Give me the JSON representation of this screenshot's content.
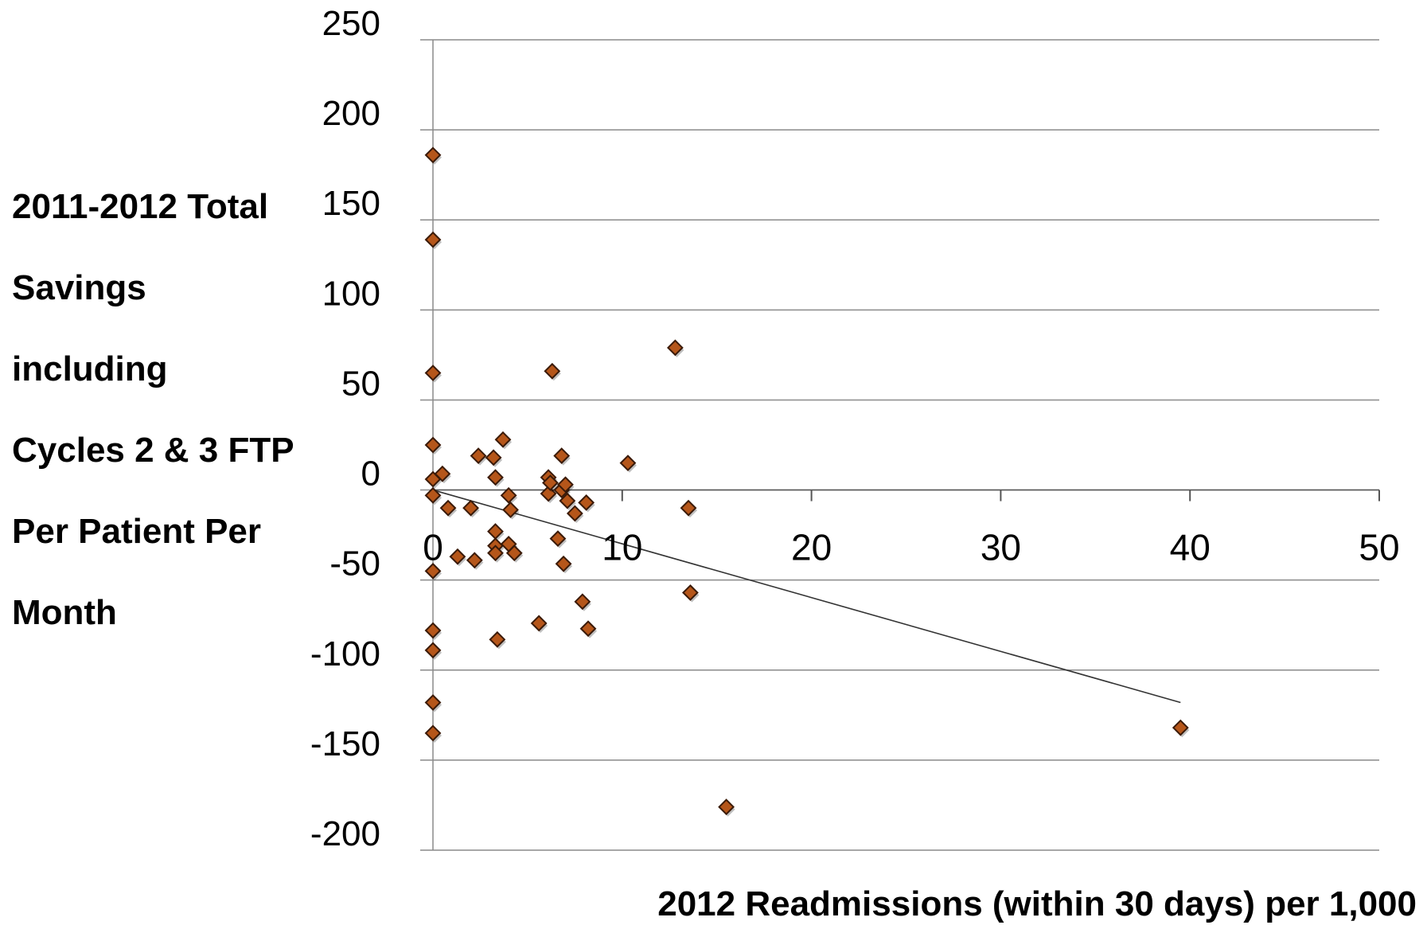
{
  "chart_data": {
    "type": "scatter",
    "title": "",
    "ylabel_lines": [
      "2011-2012 Total",
      "Savings",
      "including",
      "Cycles 2 & 3 FTP",
      "Per Patient Per",
      "Month"
    ],
    "xlabel": "2012 Readmissions (within 30 days) per 1,000",
    "xlim": [
      0,
      50
    ],
    "ylim": [
      -200,
      250
    ],
    "xticks": [
      0,
      10,
      20,
      30,
      40,
      50
    ],
    "yticks": [
      250,
      200,
      150,
      100,
      50,
      0,
      -50,
      -100,
      -150,
      -200
    ],
    "grid": "horizontal",
    "legend": "none",
    "marker_color": "#b5561a",
    "marker_edge_color": "#3a1a08",
    "trendline_color": "#333333",
    "trendline": {
      "x": [
        0,
        39.5
      ],
      "y": [
        0,
        -118
      ]
    },
    "points": [
      {
        "x": 0,
        "y": 186
      },
      {
        "x": 0,
        "y": 139
      },
      {
        "x": 0,
        "y": 65
      },
      {
        "x": 0,
        "y": 25
      },
      {
        "x": 0,
        "y": 6
      },
      {
        "x": 0,
        "y": -3
      },
      {
        "x": 0,
        "y": -45
      },
      {
        "x": 0,
        "y": -78
      },
      {
        "x": 0,
        "y": -89
      },
      {
        "x": 0,
        "y": -118
      },
      {
        "x": 0,
        "y": -135
      },
      {
        "x": 0.5,
        "y": 9
      },
      {
        "x": 0.8,
        "y": -10
      },
      {
        "x": 1.3,
        "y": -37
      },
      {
        "x": 2.0,
        "y": -10
      },
      {
        "x": 2.2,
        "y": -39
      },
      {
        "x": 2.4,
        "y": 19
      },
      {
        "x": 3.2,
        "y": 18
      },
      {
        "x": 3.3,
        "y": 7
      },
      {
        "x": 3.3,
        "y": -23
      },
      {
        "x": 3.3,
        "y": -31
      },
      {
        "x": 3.3,
        "y": -35
      },
      {
        "x": 3.4,
        "y": -83
      },
      {
        "x": 3.7,
        "y": 28
      },
      {
        "x": 4.0,
        "y": -3
      },
      {
        "x": 4.0,
        "y": -30
      },
      {
        "x": 4.1,
        "y": -11
      },
      {
        "x": 4.3,
        "y": -35
      },
      {
        "x": 5.6,
        "y": -74
      },
      {
        "x": 6.1,
        "y": 7
      },
      {
        "x": 6.1,
        "y": -2
      },
      {
        "x": 6.2,
        "y": 4
      },
      {
        "x": 6.3,
        "y": 66
      },
      {
        "x": 6.6,
        "y": -27
      },
      {
        "x": 6.8,
        "y": 19
      },
      {
        "x": 6.8,
        "y": 0
      },
      {
        "x": 6.9,
        "y": -41
      },
      {
        "x": 7.0,
        "y": 3
      },
      {
        "x": 7.1,
        "y": -6
      },
      {
        "x": 7.5,
        "y": -13
      },
      {
        "x": 7.9,
        "y": -62
      },
      {
        "x": 8.1,
        "y": -7
      },
      {
        "x": 8.2,
        "y": -77
      },
      {
        "x": 10.3,
        "y": 15
      },
      {
        "x": 12.8,
        "y": 79
      },
      {
        "x": 13.5,
        "y": -10
      },
      {
        "x": 13.6,
        "y": -57
      },
      {
        "x": 15.5,
        "y": -176
      },
      {
        "x": 39.5,
        "y": -132
      }
    ]
  }
}
